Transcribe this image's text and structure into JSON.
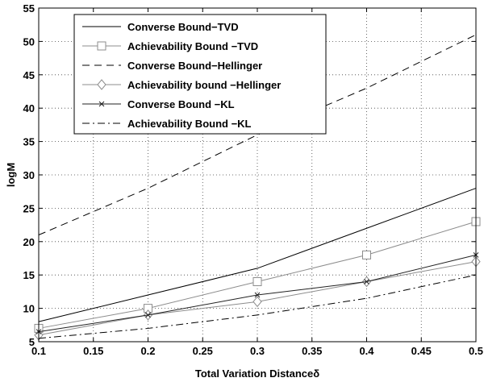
{
  "chart_data": {
    "type": "line",
    "title": "",
    "xlabel": "Total Variation Distanceδ",
    "ylabel": "logM",
    "xlim": [
      0.1,
      0.5
    ],
    "ylim": [
      5,
      55
    ],
    "xticks": [
      0.1,
      0.15,
      0.2,
      0.25,
      0.3,
      0.35,
      0.4,
      0.45,
      0.5
    ],
    "xtick_labels": [
      "0.1",
      "0.15",
      "0.2",
      "0.25",
      "0.3",
      "0.35",
      "0.4",
      "0.45",
      "0.5"
    ],
    "yticks": [
      5,
      10,
      15,
      20,
      25,
      30,
      35,
      40,
      45,
      50,
      55
    ],
    "ytick_labels": [
      "5",
      "10",
      "15",
      "20",
      "25",
      "30",
      "35",
      "40",
      "45",
      "50",
      "55"
    ],
    "grid": true,
    "legend_position": "top-left",
    "series": [
      {
        "name": "Converse Bound−TVD",
        "x": [
          0.1,
          0.2,
          0.3,
          0.4,
          0.5
        ],
        "y": [
          8,
          12,
          16,
          22,
          28
        ],
        "color": "#000000",
        "line_style": "solid",
        "marker": "none"
      },
      {
        "name": "Achievability Bound −TVD",
        "x": [
          0.1,
          0.2,
          0.3,
          0.4,
          0.5
        ],
        "y": [
          7,
          10,
          14,
          18,
          23
        ],
        "color": "#8c8c8c",
        "line_style": "solid",
        "marker": "square"
      },
      {
        "name": "Converse Bound−Hellinger",
        "x": [
          0.1,
          0.2,
          0.3,
          0.4,
          0.5
        ],
        "y": [
          21,
          28,
          36,
          43,
          51
        ],
        "color": "#000000",
        "line_style": "dashed",
        "marker": "none"
      },
      {
        "name": "Achievability bound −Hellinger",
        "x": [
          0.1,
          0.2,
          0.3,
          0.4,
          0.5
        ],
        "y": [
          6,
          9,
          11,
          14,
          17
        ],
        "color": "#8c8c8c",
        "line_style": "solid",
        "marker": "diamond"
      },
      {
        "name": "Converse Bound −KL",
        "x": [
          0.1,
          0.2,
          0.3,
          0.4,
          0.5
        ],
        "y": [
          6.5,
          9,
          12,
          14,
          18
        ],
        "color": "#222222",
        "line_style": "solid",
        "marker": "x"
      },
      {
        "name": "Achievability Bound −KL",
        "x": [
          0.1,
          0.2,
          0.3,
          0.4,
          0.5
        ],
        "y": [
          5.5,
          7,
          9,
          11.5,
          15
        ],
        "color": "#000000",
        "line_style": "dashdot",
        "marker": "none"
      }
    ]
  }
}
